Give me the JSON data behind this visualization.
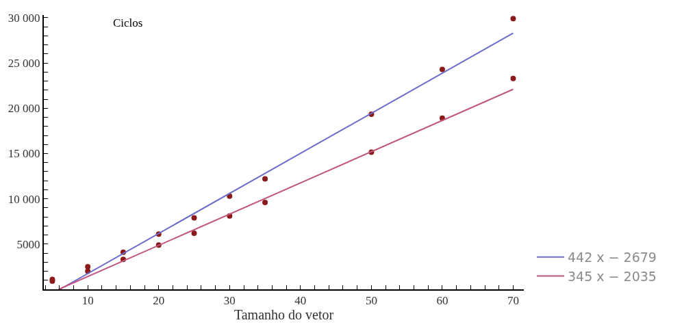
{
  "chart_data": {
    "type": "scatter",
    "xlabel": "Tamanho do vetor",
    "ylabel": "Ciclos",
    "xlim": [
      3.8,
      71.5
    ],
    "ylim": [
      0,
      30300
    ],
    "xticks": [
      {
        "value": 4,
        "label": null
      },
      {
        "value": 6,
        "label": null
      },
      {
        "value": 8,
        "label": null
      },
      10,
      {
        "value": 12,
        "label": null
      },
      {
        "value": 14,
        "label": null
      },
      {
        "value": 16,
        "label": null
      },
      {
        "value": 18,
        "label": null
      },
      20,
      {
        "value": 22,
        "label": null
      },
      {
        "value": 24,
        "label": null
      },
      {
        "value": 26,
        "label": null
      },
      {
        "value": 28,
        "label": null
      },
      30,
      {
        "value": 32,
        "label": null
      },
      {
        "value": 34,
        "label": null
      },
      {
        "value": 36,
        "label": null
      },
      {
        "value": 38,
        "label": null
      },
      40,
      {
        "value": 42,
        "label": null
      },
      {
        "value": 44,
        "label": null
      },
      {
        "value": 46,
        "label": null
      },
      {
        "value": 48,
        "label": null
      },
      50,
      {
        "value": 52,
        "label": null
      },
      {
        "value": 54,
        "label": null
      },
      {
        "value": 56,
        "label": null
      },
      {
        "value": 58,
        "label": null
      },
      60,
      {
        "value": 62,
        "label": null
      },
      {
        "value": 64,
        "label": null
      },
      {
        "value": 66,
        "label": null
      },
      {
        "value": 68,
        "label": null
      },
      70
    ],
    "yticks": [
      {
        "value": 1000,
        "label": null
      },
      {
        "value": 2000,
        "label": null
      },
      {
        "value": 3000,
        "label": null
      },
      {
        "value": 4000,
        "label": null
      },
      5000,
      {
        "value": 6000,
        "label": null
      },
      {
        "value": 7000,
        "label": null
      },
      {
        "value": 8000,
        "label": null
      },
      {
        "value": 9000,
        "label": null
      },
      {
        "value": 10000,
        "label": "10 000"
      },
      {
        "value": 11000,
        "label": null
      },
      {
        "value": 12000,
        "label": null
      },
      {
        "value": 13000,
        "label": null
      },
      {
        "value": 14000,
        "label": null
      },
      {
        "value": 15000,
        "label": "15 000"
      },
      {
        "value": 16000,
        "label": null
      },
      {
        "value": 17000,
        "label": null
      },
      {
        "value": 18000,
        "label": null
      },
      {
        "value": 19000,
        "label": null
      },
      {
        "value": 20000,
        "label": "20 000"
      },
      {
        "value": 21000,
        "label": null
      },
      {
        "value": 22000,
        "label": null
      },
      {
        "value": 23000,
        "label": null
      },
      {
        "value": 24000,
        "label": null
      },
      {
        "value": 25000,
        "label": "25 000"
      },
      {
        "value": 26000,
        "label": null
      },
      {
        "value": 27000,
        "label": null
      },
      {
        "value": 28000,
        "label": null
      },
      {
        "value": 29000,
        "label": null
      },
      {
        "value": 30000,
        "label": "30 000"
      }
    ],
    "legend": "right",
    "series": [
      {
        "marker": "circle",
        "color": "#8b1a1a",
        "x": [
          5,
          5,
          10,
          10,
          15,
          15,
          20,
          20,
          25,
          25,
          30,
          30,
          35,
          35,
          50,
          50,
          60,
          60,
          70,
          70
        ],
        "values": [
          1100,
          900,
          2500,
          2000,
          4100,
          3300,
          6100,
          4900,
          7900,
          6200,
          10300,
          8100,
          12200,
          9600,
          19350,
          15150,
          24300,
          18900,
          29900,
          23300
        ]
      },
      {
        "type": "line",
        "name": "442 x − 2679",
        "color": "#6b6bc8",
        "x": [
          6.06,
          70
        ],
        "values": [
          0,
          28300
        ]
      },
      {
        "type": "line",
        "name": "345 x − 2035",
        "color": "#c0567e",
        "x": [
          5.9,
          70
        ],
        "values": [
          0,
          22100
        ]
      }
    ]
  }
}
